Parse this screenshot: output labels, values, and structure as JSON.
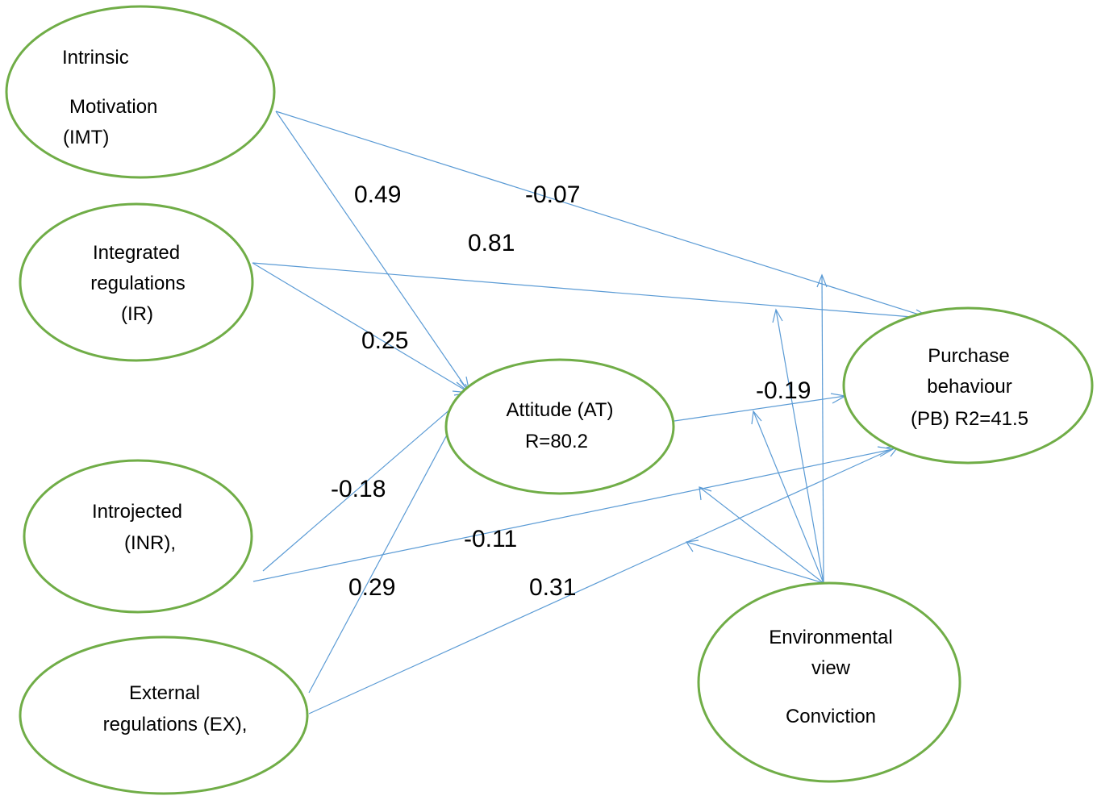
{
  "diagram": {
    "nodes": {
      "imt": {
        "lines": [
          "Intrinsic",
          "Motivation",
          "(IMT)"
        ]
      },
      "ir": {
        "lines": [
          "Integrated",
          "regulations",
          "(IR)"
        ]
      },
      "inr": {
        "lines": [
          "Introjected",
          "(INR),"
        ]
      },
      "ex": {
        "lines": [
          "External",
          "regulations (EX),"
        ]
      },
      "at": {
        "lines": [
          "Attitude (AT)",
          "R=80.2"
        ]
      },
      "pb": {
        "lines": [
          "Purchase",
          "behaviour",
          "(PB) R2=41.5"
        ]
      },
      "ev": {
        "lines": [
          "Environmental",
          "view",
          "Conviction"
        ]
      }
    },
    "coefficients": {
      "imt_at": "0.49",
      "imt_pb": "-0.07",
      "ir_pb": "0.81",
      "ir_at": "0.25",
      "at_pb": "-0.19",
      "inr_at": "-0.18",
      "inr_pb": "-0.11",
      "ex_at": "0.29",
      "ex_pb": "0.31"
    }
  }
}
